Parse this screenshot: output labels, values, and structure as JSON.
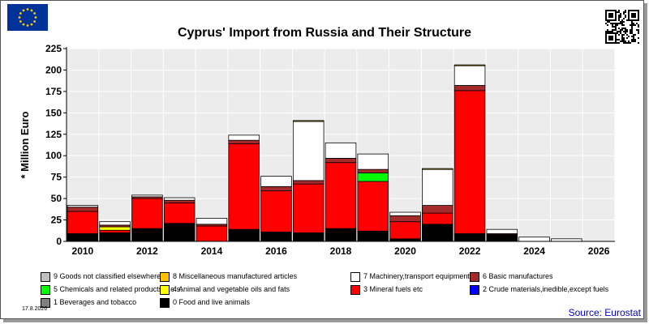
{
  "header": {
    "title": "Cyprus' Import from Russia and Their Structure",
    "date": "17.8.2026",
    "source": "Source: Eurostat"
  },
  "colors": {
    "plot_bg": "#ececec",
    "grid": "#ffffff",
    "flag_blue": "#003399",
    "flag_star": "#ffcc00",
    "source_text": "#0000cc"
  },
  "chart_data": {
    "type": "bar",
    "stacked": true,
    "title": "Cyprus' Import from Russia and Their Structure",
    "ylabel": "* Million Euro",
    "xlabel": "",
    "ylim": [
      0,
      225
    ],
    "yticks": [
      0,
      25,
      50,
      75,
      100,
      125,
      150,
      175,
      200,
      225
    ],
    "x_tick_labels": [
      "2010",
      "2012",
      "2014",
      "2016",
      "2018",
      "2020",
      "2022",
      "2024",
      "2026"
    ],
    "categories": [
      "2010",
      "2011",
      "2012",
      "2013",
      "2014",
      "2015",
      "2016",
      "2017",
      "2018",
      "2019",
      "2020",
      "2021",
      "2022",
      "2023",
      "2024",
      "2025",
      "2026"
    ],
    "grid": true,
    "series": [
      {
        "name": "0 Food and live animals",
        "color": "#000000",
        "values": [
          9,
          10,
          15,
          21,
          0,
          14,
          11,
          10,
          15,
          12,
          3,
          20,
          9,
          8,
          0,
          0,
          0
        ]
      },
      {
        "name": "1 Beverages and tobacco",
        "color": "#808080",
        "values": [
          0,
          0,
          0,
          0,
          0,
          0,
          0,
          0,
          0,
          0,
          0,
          0,
          0,
          0,
          0,
          0,
          0
        ]
      },
      {
        "name": "2 Crude materials,inedible,except fuels",
        "color": "#0000ff",
        "values": [
          0,
          0,
          0,
          0,
          0,
          0,
          0,
          0,
          0,
          0,
          0,
          0,
          0,
          0,
          0,
          0,
          0
        ]
      },
      {
        "name": "3 Mineral fuels etc",
        "color": "#ff0000",
        "values": [
          26,
          3,
          35,
          24,
          18,
          100,
          48,
          57,
          77,
          58,
          20,
          13,
          167,
          0,
          0,
          0,
          0
        ]
      },
      {
        "name": "4 Animal and vegetable oils and fats",
        "color": "#ffff00",
        "values": [
          0,
          4,
          0,
          0,
          0,
          0,
          0,
          0,
          0,
          0,
          0,
          0,
          0,
          0,
          0,
          0,
          0
        ]
      },
      {
        "name": "5 Chemicals and related products,n.e.s.",
        "color": "#00ff00",
        "values": [
          0,
          0,
          0,
          0,
          0,
          0,
          0,
          0,
          0,
          10,
          0,
          0,
          0,
          0,
          0,
          0,
          0
        ]
      },
      {
        "name": "6 Basic manufactures",
        "color": "#a52a2a",
        "values": [
          5,
          2,
          2,
          3,
          2,
          4,
          5,
          4,
          5,
          4,
          7,
          9,
          6,
          1,
          0,
          0,
          0
        ]
      },
      {
        "name": "7 Machinery,transport equipment",
        "color": "#ffffff",
        "values": [
          2,
          4,
          2,
          3,
          7,
          6,
          12,
          69,
          18,
          18,
          4,
          42,
          23,
          5,
          5,
          3,
          0
        ]
      },
      {
        "name": "8 Miscellaneous manufactured articles",
        "color": "#ffc000",
        "values": [
          0,
          0,
          0,
          0,
          0,
          0,
          0,
          1,
          0,
          0,
          0,
          1,
          1,
          0,
          0,
          0,
          0
        ]
      },
      {
        "name": "9 Goods not classified elsewhere",
        "color": "#c0c0c0",
        "values": [
          0,
          0,
          0,
          0,
          0,
          0,
          0,
          0,
          0,
          0,
          0,
          0,
          0,
          0,
          0,
          0,
          0
        ]
      }
    ],
    "legend_placement": "bottom",
    "legend_order": [
      9,
      8,
      7,
      6,
      5,
      4,
      3,
      2,
      1,
      0
    ]
  }
}
